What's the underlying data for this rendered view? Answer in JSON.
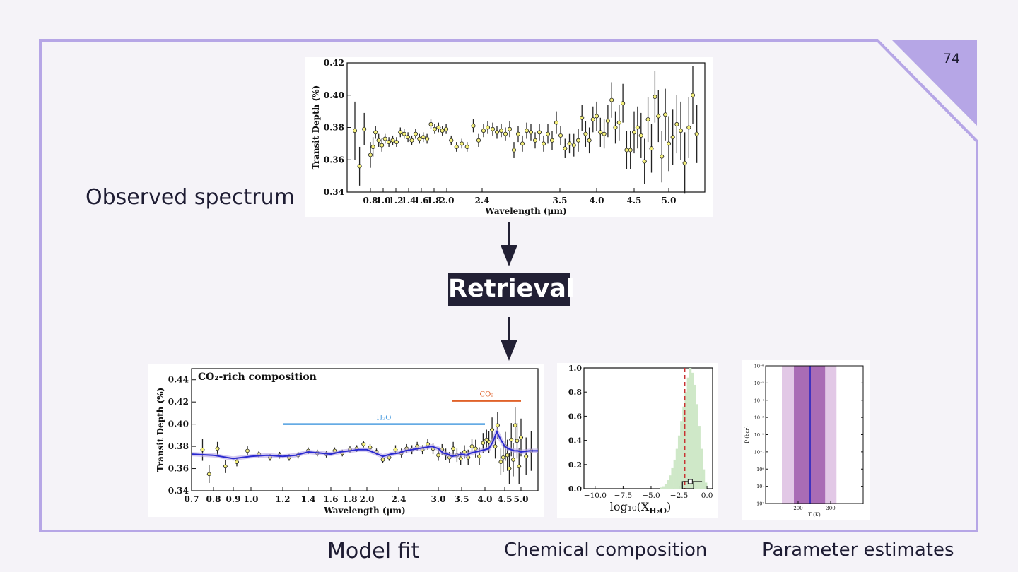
{
  "slide": {
    "page_number": "74"
  },
  "labels": {
    "observed": "Observed spectrum",
    "retrieval": "Retrieval",
    "model_fit": "Model fit",
    "chemical": "Chemical composition",
    "parameters": "Parameter estimates"
  },
  "colors": {
    "frame": "#b6a6e6",
    "corner": "#b6a6e6",
    "retrieval_bg": "#222035",
    "points": "#f5f07a",
    "model_line": "#2a2ad0",
    "h2o_bar": "#4f9fe0",
    "co2_bar": "#e0622a",
    "hist": "#cfe8c8",
    "median": "#c83232",
    "band_outer": "#e2c8e6",
    "band_inner": "#a96cb5",
    "profile": "#2020c0"
  },
  "chart_data": [
    {
      "id": "observed-spectrum",
      "type": "scatter",
      "title": "",
      "xlabel": "Wavelength (μm)",
      "ylabel": "Transit Depth (%)",
      "xlim": [
        0.65,
        5.45
      ],
      "ylim": [
        0.34,
        0.42
      ],
      "xticks": [
        0.8,
        1.0,
        1.2,
        1.4,
        1.6,
        1.8,
        2.0,
        2.4,
        3.5,
        4.0,
        4.5,
        5.0
      ],
      "xtick_labels": [
        "0.8",
        "1.0",
        "1.2",
        "1.4",
        "1.6",
        "1.8",
        "2.0",
        "2.4",
        "3.5",
        "4.0",
        "4.5",
        "5.0"
      ],
      "yticks": [
        "0.34",
        "0.36",
        "0.38",
        "0.40",
        "0.42"
      ],
      "points": [
        [
          0.7,
          0.378,
          0.018
        ],
        [
          0.73,
          0.356,
          0.012
        ],
        [
          0.76,
          0.379,
          0.01
        ],
        [
          0.8,
          0.363,
          0.008
        ],
        [
          0.84,
          0.368,
          0.006
        ],
        [
          0.88,
          0.377,
          0.004
        ],
        [
          0.93,
          0.372,
          0.004
        ],
        [
          0.98,
          0.369,
          0.004
        ],
        [
          1.03,
          0.373,
          0.003
        ],
        [
          1.09,
          0.371,
          0.003
        ],
        [
          1.15,
          0.372,
          0.003
        ],
        [
          1.21,
          0.371,
          0.003
        ],
        [
          1.27,
          0.377,
          0.003
        ],
        [
          1.33,
          0.376,
          0.003
        ],
        [
          1.39,
          0.374,
          0.003
        ],
        [
          1.45,
          0.372,
          0.003
        ],
        [
          1.51,
          0.376,
          0.003
        ],
        [
          1.57,
          0.373,
          0.003
        ],
        [
          1.63,
          0.374,
          0.003
        ],
        [
          1.69,
          0.373,
          0.003
        ],
        [
          1.75,
          0.382,
          0.003
        ],
        [
          1.81,
          0.379,
          0.003
        ],
        [
          1.87,
          0.38,
          0.003
        ],
        [
          1.93,
          0.378,
          0.003
        ],
        [
          1.99,
          0.379,
          0.003
        ],
        [
          2.05,
          0.372,
          0.003
        ],
        [
          2.11,
          0.368,
          0.003
        ],
        [
          2.17,
          0.37,
          0.003
        ],
        [
          2.23,
          0.368,
          0.003
        ],
        [
          2.3,
          0.381,
          0.004
        ],
        [
          2.36,
          0.372,
          0.004
        ],
        [
          2.42,
          0.378,
          0.004
        ],
        [
          2.48,
          0.38,
          0.004
        ],
        [
          2.55,
          0.379,
          0.004
        ],
        [
          2.61,
          0.377,
          0.004
        ],
        [
          2.67,
          0.378,
          0.004
        ],
        [
          2.73,
          0.376,
          0.004
        ],
        [
          2.79,
          0.379,
          0.005
        ],
        [
          2.85,
          0.366,
          0.005
        ],
        [
          2.91,
          0.376,
          0.005
        ],
        [
          2.97,
          0.37,
          0.005
        ],
        [
          3.03,
          0.378,
          0.005
        ],
        [
          3.09,
          0.377,
          0.005
        ],
        [
          3.15,
          0.372,
          0.005
        ],
        [
          3.21,
          0.377,
          0.005
        ],
        [
          3.27,
          0.37,
          0.005
        ],
        [
          3.33,
          0.376,
          0.006
        ],
        [
          3.39,
          0.372,
          0.006
        ],
        [
          3.45,
          0.383,
          0.007
        ],
        [
          3.51,
          0.375,
          0.006
        ],
        [
          3.57,
          0.367,
          0.006
        ],
        [
          3.63,
          0.37,
          0.006
        ],
        [
          3.69,
          0.369,
          0.007
        ],
        [
          3.75,
          0.372,
          0.007
        ],
        [
          3.8,
          0.386,
          0.008
        ],
        [
          3.85,
          0.376,
          0.008
        ],
        [
          3.9,
          0.372,
          0.008
        ],
        [
          3.95,
          0.385,
          0.008
        ],
        [
          4.0,
          0.387,
          0.009
        ],
        [
          4.05,
          0.377,
          0.009
        ],
        [
          4.1,
          0.376,
          0.009
        ],
        [
          4.15,
          0.384,
          0.01
        ],
        [
          4.2,
          0.397,
          0.011
        ],
        [
          4.25,
          0.38,
          0.01
        ],
        [
          4.3,
          0.383,
          0.011
        ],
        [
          4.35,
          0.395,
          0.012
        ],
        [
          4.4,
          0.366,
          0.012
        ],
        [
          4.45,
          0.366,
          0.012
        ],
        [
          4.5,
          0.377,
          0.013
        ],
        [
          4.55,
          0.38,
          0.013
        ],
        [
          4.6,
          0.375,
          0.014
        ],
        [
          4.65,
          0.359,
          0.014
        ],
        [
          4.7,
          0.385,
          0.014
        ],
        [
          4.75,
          0.367,
          0.015
        ],
        [
          4.8,
          0.399,
          0.016
        ],
        [
          4.85,
          0.387,
          0.016
        ],
        [
          4.9,
          0.362,
          0.016
        ],
        [
          4.95,
          0.388,
          0.016
        ],
        [
          5.0,
          0.37,
          0.017
        ],
        [
          5.05,
          0.374,
          0.017
        ],
        [
          5.1,
          0.382,
          0.018
        ],
        [
          5.15,
          0.378,
          0.018
        ],
        [
          5.2,
          0.358,
          0.019
        ],
        [
          5.25,
          0.38,
          0.019
        ],
        [
          5.3,
          0.4,
          0.018
        ],
        [
          5.35,
          0.376,
          0.018
        ]
      ]
    },
    {
      "id": "model-fit",
      "type": "line",
      "title": "CO₂-rich composition",
      "xlabel": "Wavelength (μm)",
      "ylabel": "Transit Depth (%)",
      "xlim": [
        0.7,
        5.2
      ],
      "ylim": [
        0.34,
        0.45
      ],
      "xticks": [
        0.7,
        0.8,
        0.9,
        1.0,
        1.2,
        1.4,
        1.6,
        1.8,
        2.0,
        2.4,
        3.0,
        3.5,
        4.0,
        4.5,
        5.0
      ],
      "xtick_labels": [
        "0.7",
        "0.8",
        "0.9",
        "1.0",
        "1.2",
        "1.4",
        "1.6",
        "1.8",
        "2.0",
        "2.4",
        "3.0",
        "3.5",
        "4.0",
        "4.5",
        "5.0"
      ],
      "yticks": [
        "0.34",
        "0.36",
        "0.38",
        "0.40",
        "0.42",
        "0.44"
      ],
      "bands": [
        {
          "label": "H₂O",
          "x0": 1.2,
          "x1": 4.0,
          "y": 0.4
        },
        {
          "label": "CO₂",
          "x0": 3.3,
          "x1": 5.0,
          "y": 0.421
        }
      ],
      "model": [
        [
          0.7,
          0.373
        ],
        [
          0.8,
          0.372
        ],
        [
          0.9,
          0.369
        ],
        [
          1.0,
          0.371
        ],
        [
          1.1,
          0.372
        ],
        [
          1.2,
          0.371
        ],
        [
          1.3,
          0.372
        ],
        [
          1.4,
          0.375
        ],
        [
          1.5,
          0.374
        ],
        [
          1.6,
          0.373
        ],
        [
          1.7,
          0.375
        ],
        [
          1.8,
          0.376
        ],
        [
          1.9,
          0.377
        ],
        [
          2.0,
          0.377
        ],
        [
          2.1,
          0.374
        ],
        [
          2.2,
          0.371
        ],
        [
          2.3,
          0.373
        ],
        [
          2.4,
          0.374
        ],
        [
          2.5,
          0.376
        ],
        [
          2.6,
          0.377
        ],
        [
          2.7,
          0.378
        ],
        [
          2.8,
          0.379
        ],
        [
          2.9,
          0.38
        ],
        [
          3.0,
          0.378
        ],
        [
          3.1,
          0.374
        ],
        [
          3.2,
          0.373
        ],
        [
          3.3,
          0.371
        ],
        [
          3.4,
          0.372
        ],
        [
          3.5,
          0.373
        ],
        [
          3.6,
          0.372
        ],
        [
          3.7,
          0.374
        ],
        [
          3.8,
          0.375
        ],
        [
          3.9,
          0.376
        ],
        [
          4.0,
          0.377
        ],
        [
          4.1,
          0.378
        ],
        [
          4.2,
          0.384
        ],
        [
          4.3,
          0.393
        ],
        [
          4.4,
          0.386
        ],
        [
          4.5,
          0.38
        ],
        [
          4.6,
          0.378
        ],
        [
          4.7,
          0.377
        ],
        [
          4.8,
          0.376
        ],
        [
          4.9,
          0.376
        ],
        [
          5.0,
          0.375
        ],
        [
          5.1,
          0.376
        ],
        [
          5.2,
          0.376
        ]
      ],
      "points": [
        [
          0.75,
          0.377,
          0.01
        ],
        [
          0.78,
          0.355,
          0.008
        ],
        [
          0.82,
          0.378,
          0.006
        ],
        [
          0.86,
          0.362,
          0.006
        ],
        [
          0.92,
          0.366,
          0.004
        ],
        [
          0.98,
          0.376,
          0.004
        ],
        [
          1.05,
          0.373,
          0.003
        ],
        [
          1.12,
          0.37,
          0.003
        ],
        [
          1.18,
          0.372,
          0.003
        ],
        [
          1.25,
          0.37,
          0.003
        ],
        [
          1.32,
          0.372,
          0.003
        ],
        [
          1.4,
          0.376,
          0.003
        ],
        [
          1.48,
          0.374,
          0.003
        ],
        [
          1.56,
          0.373,
          0.003
        ],
        [
          1.64,
          0.376,
          0.003
        ],
        [
          1.72,
          0.374,
          0.003
        ],
        [
          1.8,
          0.377,
          0.003
        ],
        [
          1.88,
          0.378,
          0.003
        ],
        [
          1.96,
          0.382,
          0.003
        ],
        [
          2.04,
          0.379,
          0.003
        ],
        [
          2.12,
          0.375,
          0.003
        ],
        [
          2.2,
          0.368,
          0.003
        ],
        [
          2.28,
          0.37,
          0.003
        ],
        [
          2.36,
          0.377,
          0.004
        ],
        [
          2.44,
          0.374,
          0.004
        ],
        [
          2.52,
          0.378,
          0.004
        ],
        [
          2.6,
          0.377,
          0.004
        ],
        [
          2.68,
          0.38,
          0.004
        ],
        [
          2.76,
          0.377,
          0.004
        ],
        [
          2.84,
          0.382,
          0.005
        ],
        [
          2.92,
          0.378,
          0.005
        ],
        [
          3.0,
          0.372,
          0.005
        ],
        [
          3.08,
          0.377,
          0.005
        ],
        [
          3.16,
          0.373,
          0.005
        ],
        [
          3.24,
          0.37,
          0.005
        ],
        [
          3.32,
          0.378,
          0.006
        ],
        [
          3.4,
          0.372,
          0.006
        ],
        [
          3.48,
          0.369,
          0.006
        ],
        [
          3.56,
          0.375,
          0.006
        ],
        [
          3.64,
          0.37,
          0.007
        ],
        [
          3.72,
          0.38,
          0.007
        ],
        [
          3.8,
          0.378,
          0.008
        ],
        [
          3.88,
          0.371,
          0.008
        ],
        [
          3.96,
          0.383,
          0.009
        ],
        [
          4.04,
          0.386,
          0.009
        ],
        [
          4.1,
          0.384,
          0.01
        ],
        [
          4.18,
          0.395,
          0.011
        ],
        [
          4.26,
          0.38,
          0.011
        ],
        [
          4.32,
          0.399,
          0.012
        ],
        [
          4.4,
          0.366,
          0.012
        ],
        [
          4.46,
          0.37,
          0.013
        ],
        [
          4.52,
          0.38,
          0.013
        ],
        [
          4.58,
          0.372,
          0.014
        ],
        [
          4.64,
          0.36,
          0.014
        ],
        [
          4.7,
          0.386,
          0.015
        ],
        [
          4.76,
          0.368,
          0.015
        ],
        [
          4.82,
          0.399,
          0.016
        ],
        [
          4.88,
          0.385,
          0.016
        ],
        [
          4.94,
          0.362,
          0.016
        ],
        [
          5.0,
          0.388,
          0.017
        ],
        [
          5.06,
          0.371,
          0.017
        ],
        [
          5.12,
          0.376,
          0.018
        ]
      ]
    },
    {
      "id": "chemical-composition",
      "type": "histogram",
      "xlabel": "log₁₀(X",
      "xlabel_sub": "H₂O",
      "xlabel_end": ")",
      "xlim": [
        -11,
        0.5
      ],
      "ylim": [
        0,
        1.0
      ],
      "xticks": [
        -10,
        -7.5,
        -5,
        -2.5,
        0
      ],
      "xtick_labels": [
        "−10.0",
        "−7.5",
        "−5.0",
        "−2.5",
        "0.0"
      ],
      "yticks": [
        0,
        0.2,
        0.4,
        0.6,
        0.8,
        1.0
      ],
      "ytick_labels": [
        "0.0",
        "0.2",
        "0.4",
        "0.6",
        "0.8",
        "1.0"
      ],
      "bins": [
        [
          -4.2,
          0.01
        ],
        [
          -4.0,
          0.02
        ],
        [
          -3.8,
          0.04
        ],
        [
          -3.6,
          0.07
        ],
        [
          -3.4,
          0.11
        ],
        [
          -3.2,
          0.17
        ],
        [
          -3.0,
          0.24
        ],
        [
          -2.8,
          0.33
        ],
        [
          -2.6,
          0.44
        ],
        [
          -2.4,
          0.56
        ],
        [
          -2.2,
          0.68
        ],
        [
          -2.0,
          0.8
        ],
        [
          -1.8,
          0.92
        ],
        [
          -1.6,
          1.0
        ],
        [
          -1.4,
          0.96
        ],
        [
          -1.2,
          0.86
        ],
        [
          -1.0,
          0.7
        ],
        [
          -0.8,
          0.52
        ],
        [
          -0.6,
          0.33
        ],
        [
          -0.4,
          0.16
        ],
        [
          -0.2,
          0.05
        ]
      ],
      "median": -2.0,
      "box": [
        -2.2,
        -1.2
      ],
      "marker": -1.5
    },
    {
      "id": "parameter-estimates",
      "type": "area",
      "xlabel": "T (K)",
      "ylabel": "P (bar)",
      "xlim": [
        100,
        400
      ],
      "xticks": [
        200,
        300
      ],
      "xtick_labels": [
        "200",
        "300"
      ],
      "yticks": [
        "10⁻⁶",
        "10⁻⁵",
        "10⁻⁴",
        "10⁻³",
        "10⁻²",
        "10⁻¹",
        "10⁰",
        "10¹",
        "10²"
      ],
      "outer_band": [
        150,
        318
      ],
      "inner_band": [
        187,
        283
      ],
      "profile_T": 237
    }
  ]
}
